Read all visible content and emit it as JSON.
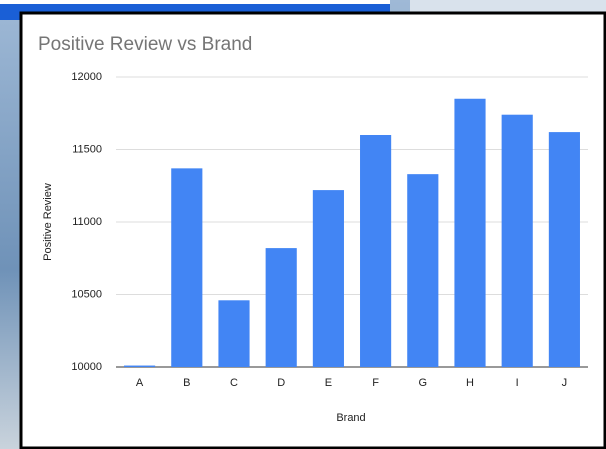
{
  "chart_data": {
    "type": "bar",
    "title": "Positive Review vs Brand",
    "x_label": "Brand",
    "y_label": "Positive Review",
    "categories": [
      "A",
      "B",
      "C",
      "D",
      "E",
      "F",
      "G",
      "H",
      "I",
      "J"
    ],
    "values": [
      10010,
      11370,
      10460,
      10820,
      11220,
      11600,
      11330,
      11850,
      11740,
      11620
    ],
    "color": "#4285f4",
    "ylim": [
      10000,
      12000
    ],
    "yticks": [
      10000,
      10500,
      11000,
      11500,
      12000
    ],
    "grid": true
  }
}
